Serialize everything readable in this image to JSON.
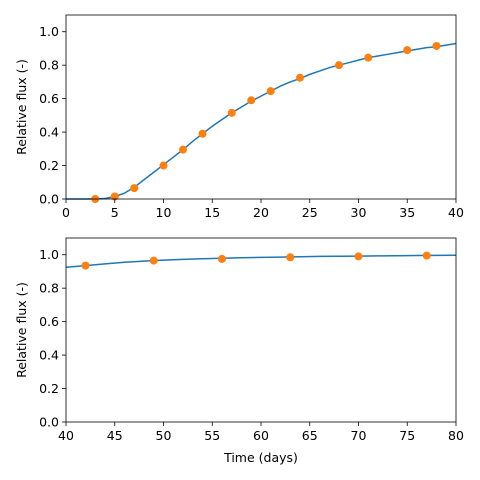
{
  "chart_data": [
    {
      "type": "line",
      "ylabel": "Relative flux (-)",
      "xlabel": "",
      "xlim": [
        0,
        40
      ],
      "ylim": [
        0,
        1.1
      ],
      "xticks": [
        0,
        5,
        10,
        15,
        20,
        25,
        30,
        35,
        40
      ],
      "xtick_labels": [
        "0",
        "5",
        "10",
        "15",
        "20",
        "25",
        "30",
        "35",
        "40"
      ],
      "yticks": [
        0,
        0.2,
        0.4,
        0.6,
        0.8,
        1.0
      ],
      "ytick_labels": [
        "0.0",
        "0.2",
        "0.4",
        "0.6",
        "0.8",
        "1.0"
      ],
      "grid": false,
      "colors": {
        "curve": "#1f77b4",
        "points": "#ff7f0e"
      },
      "series": [
        {
          "kind": "line",
          "x": [
            0,
            1,
            2,
            3,
            4,
            5,
            6,
            7,
            8,
            9,
            10,
            11,
            12,
            13,
            14,
            15,
            16,
            17,
            18,
            19,
            20,
            21,
            22,
            23,
            24,
            25,
            26,
            27,
            28,
            29,
            30,
            31,
            32,
            33,
            34,
            35,
            36,
            37,
            38,
            39,
            40
          ],
          "y": [
            0.0,
            0.0,
            0.0,
            0.0,
            0.003,
            0.015,
            0.035,
            0.07,
            0.115,
            0.16,
            0.205,
            0.25,
            0.295,
            0.345,
            0.39,
            0.435,
            0.475,
            0.515,
            0.55,
            0.585,
            0.615,
            0.645,
            0.675,
            0.7,
            0.72,
            0.745,
            0.765,
            0.785,
            0.8,
            0.815,
            0.83,
            0.845,
            0.855,
            0.865,
            0.875,
            0.885,
            0.895,
            0.905,
            0.91,
            0.92,
            0.93
          ]
        },
        {
          "kind": "scatter",
          "x": [
            3,
            5,
            7,
            10,
            12,
            14,
            17,
            19,
            21,
            24,
            28,
            31,
            35,
            38
          ],
          "y": [
            0.0,
            0.015,
            0.065,
            0.2,
            0.295,
            0.39,
            0.515,
            0.59,
            0.645,
            0.725,
            0.8,
            0.845,
            0.89,
            0.915
          ]
        }
      ]
    },
    {
      "type": "line",
      "ylabel": "Relative flux (-)",
      "xlabel": "Time (days)",
      "xlim": [
        40,
        80
      ],
      "ylim": [
        0,
        1.1
      ],
      "xticks": [
        40,
        45,
        50,
        55,
        60,
        65,
        70,
        75,
        80
      ],
      "xtick_labels": [
        "40",
        "45",
        "50",
        "55",
        "60",
        "65",
        "70",
        "75",
        "80"
      ],
      "yticks": [
        0,
        0.2,
        0.4,
        0.6,
        0.8,
        1.0
      ],
      "ytick_labels": [
        "0.0",
        "0.2",
        "0.4",
        "0.6",
        "0.8",
        "1.0"
      ],
      "grid": false,
      "colors": {
        "curve": "#1f77b4",
        "points": "#ff7f0e"
      },
      "series": [
        {
          "kind": "line",
          "x": [
            40,
            42,
            44,
            46,
            48,
            50,
            52,
            54,
            56,
            58,
            60,
            62,
            64,
            66,
            68,
            70,
            72,
            74,
            76,
            78,
            80
          ],
          "y": [
            0.925,
            0.935,
            0.945,
            0.955,
            0.962,
            0.968,
            0.972,
            0.976,
            0.979,
            0.982,
            0.984,
            0.986,
            0.988,
            0.99,
            0.991,
            0.992,
            0.993,
            0.994,
            0.995,
            0.996,
            0.997
          ]
        },
        {
          "kind": "scatter",
          "x": [
            42,
            49,
            56,
            63,
            70,
            77
          ],
          "y": [
            0.935,
            0.965,
            0.975,
            0.985,
            0.99,
            0.995
          ]
        }
      ]
    }
  ]
}
